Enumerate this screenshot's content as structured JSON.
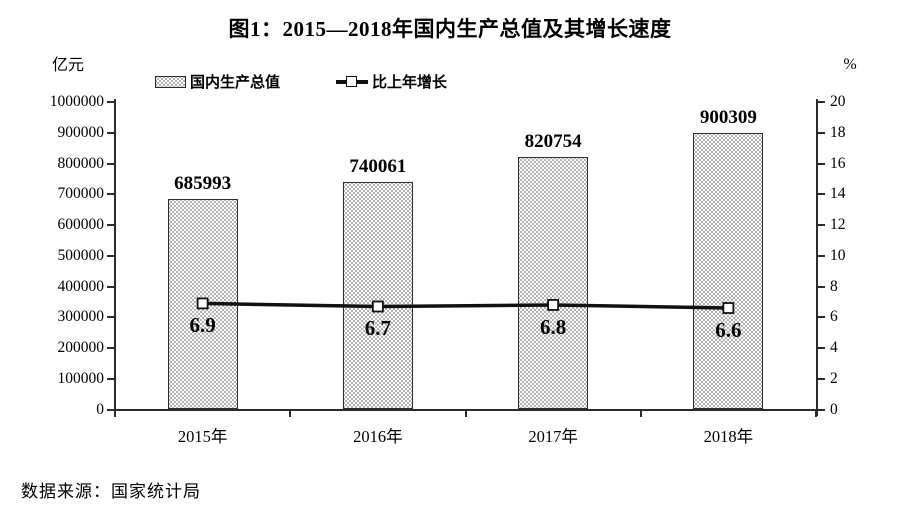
{
  "title": "图1：2015—2018年国内生产总值及其增长速度",
  "source": "数据来源：国家统计局",
  "left_axis": {
    "unit": "亿元",
    "min": 0,
    "max": 1000000,
    "step": 100000,
    "ticks": [
      "1000000",
      "900000",
      "800000",
      "700000",
      "600000",
      "500000",
      "400000",
      "300000",
      "200000",
      "100000",
      "0"
    ]
  },
  "right_axis": {
    "unit": "%",
    "min": 0,
    "max": 20,
    "step": 2,
    "ticks": [
      "20",
      "18",
      "16",
      "14",
      "12",
      "10",
      "8",
      "6",
      "4",
      "2",
      "0"
    ]
  },
  "legend": [
    {
      "label": "国内生产总值",
      "swatch": "stippled-bar"
    },
    {
      "label": "比上年增长",
      "swatch": "line-with-square-marker"
    }
  ],
  "chart_data": {
    "type": "bar+line",
    "title": "图1：2015—2018年国内生产总值及其增长速度",
    "categories": [
      "2015年",
      "2016年",
      "2017年",
      "2018年"
    ],
    "series": [
      {
        "name": "国内生产总值",
        "type": "bar",
        "axis": "left",
        "values": [
          685993,
          740061,
          820754,
          900309
        ]
      },
      {
        "name": "比上年增长",
        "type": "line",
        "axis": "right",
        "values": [
          6.9,
          6.7,
          6.8,
          6.6
        ]
      }
    ],
    "left_ylabel": "亿元",
    "right_ylabel": "%",
    "left_ylim": [
      0,
      1000000
    ],
    "right_ylim": [
      0,
      20
    ],
    "grid": false,
    "legend_position": "top-left"
  },
  "colors": {
    "text": "#000000",
    "axis": "#2b2b2b",
    "bar_fill": "#fcfcfc",
    "bar_dot": "#9a9a9a",
    "line": "#111111",
    "marker_fill": "#ffffff"
  }
}
